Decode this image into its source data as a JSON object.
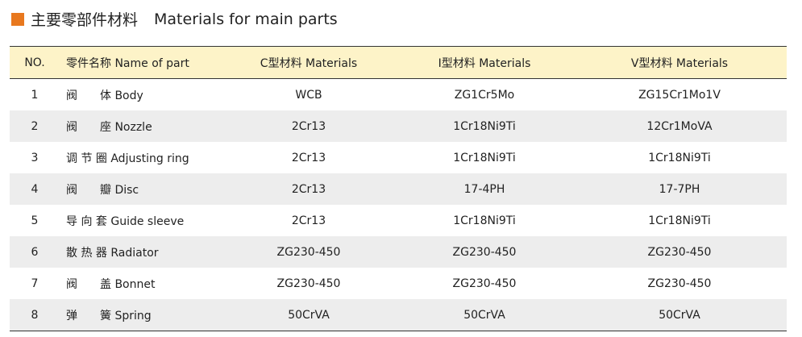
{
  "header": {
    "title": "主要零部件材料",
    "subtitle": "Materials for main parts"
  },
  "table": {
    "columns": [
      "NO.",
      "零件名称 Name of part",
      "C型材料 Materials",
      "I型材料 Materials",
      "V型材料 Materials"
    ],
    "rows": [
      [
        "1",
        "阀　　体 Body",
        "WCB",
        "ZG1Cr5Mo",
        "ZG15Cr1Mo1V"
      ],
      [
        "2",
        "阀　　座 Nozzle",
        "2Cr13",
        "1Cr18Ni9Ti",
        "12Cr1MoVA"
      ],
      [
        "3",
        "调 节 圈 Adjusting ring",
        "2Cr13",
        "1Cr18Ni9Ti",
        "1Cr18Ni9Ti"
      ],
      [
        "4",
        "阀　　瓣 Disc",
        "2Cr13",
        "17-4PH",
        "17-7PH"
      ],
      [
        "5",
        "导 向 套 Guide sleeve",
        "2Cr13",
        "1Cr18Ni9Ti",
        "1Cr18Ni9Ti"
      ],
      [
        "6",
        "散 热 器 Radiator",
        "ZG230-450",
        "ZG230-450",
        "ZG230-450"
      ],
      [
        "7",
        "阀　　盖 Bonnet",
        "ZG230-450",
        "ZG230-450",
        "ZG230-450"
      ],
      [
        "8",
        "弹　　簧 Spring",
        "50CrVA",
        "50CrVA",
        "50CrVA"
      ]
    ]
  }
}
